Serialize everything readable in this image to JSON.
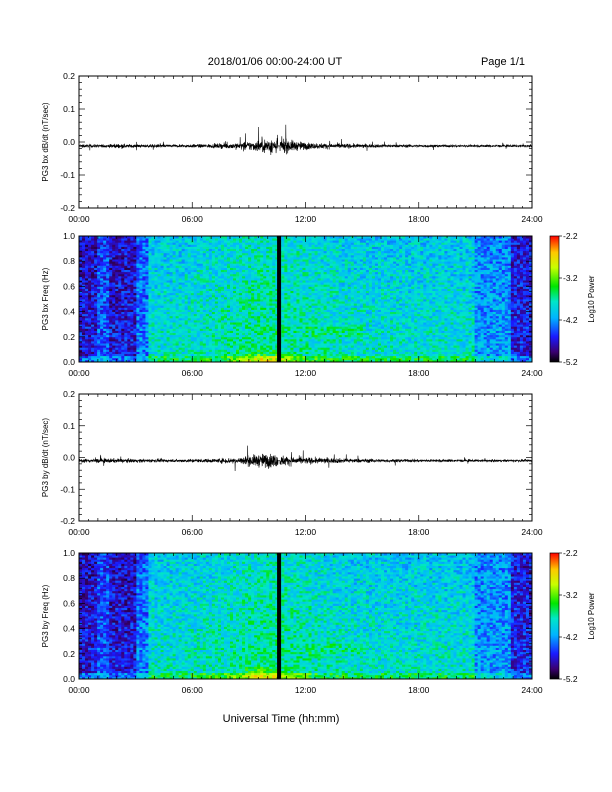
{
  "header": {
    "title": "2018/01/06  00:00-24:00 UT",
    "page": "Page 1/1"
  },
  "footer": {
    "xlabel": "Universal Time (hh:mm)"
  },
  "chart_data": [
    {
      "id": "bx-waveform",
      "type": "line",
      "ylabel": "PG3 bx dB/dt (nT/sec)",
      "ylim": [
        -0.2,
        0.2
      ],
      "yticks": [
        "0.2",
        "0.1",
        "0.0",
        "-0.1",
        "-0.2"
      ],
      "xticks": [
        "00:00",
        "06:00",
        "12:00",
        "18:00",
        "24:00"
      ],
      "xlim": [
        0,
        24
      ],
      "baseline": -0.012,
      "envelope": [
        [
          0,
          0.008
        ],
        [
          1.5,
          0.008
        ],
        [
          2,
          0.012
        ],
        [
          3,
          0.008
        ],
        [
          5,
          0.008
        ],
        [
          7,
          0.01
        ],
        [
          8.5,
          0.018
        ],
        [
          9.5,
          0.03
        ],
        [
          10,
          0.04
        ],
        [
          10.5,
          0.045
        ],
        [
          11,
          0.035
        ],
        [
          11.5,
          0.025
        ],
        [
          12.5,
          0.015
        ],
        [
          14,
          0.012
        ],
        [
          16,
          0.008
        ],
        [
          20,
          0.006
        ],
        [
          24,
          0.006
        ]
      ]
    },
    {
      "id": "bx-spectrogram",
      "type": "heatmap",
      "ylabel": "PG3 bx Freq (Hz)",
      "ylim": [
        0.0,
        1.0
      ],
      "yticks": [
        "1.0",
        "0.8",
        "0.6",
        "0.4",
        "0.2",
        "0.0"
      ],
      "xticks": [
        "00:00",
        "06:00",
        "12:00",
        "18:00",
        "24:00"
      ],
      "xlim": [
        0,
        24
      ],
      "colorbar": {
        "label": "Log10 Power",
        "range": [
          -5.2,
          -2.2
        ],
        "ticks": [
          "-2.2",
          "-3.2",
          "-4.2",
          "-5.2"
        ]
      },
      "gap_hour": 10.6
    },
    {
      "id": "by-waveform",
      "type": "line",
      "ylabel": "PG3 by dB/dt (nT/sec)",
      "ylim": [
        -0.2,
        0.2
      ],
      "yticks": [
        "0.2",
        "0.1",
        "0.0",
        "-0.1",
        "-0.2"
      ],
      "xticks": [
        "00:00",
        "06:00",
        "12:00",
        "18:00",
        "24:00"
      ],
      "xlim": [
        0,
        24
      ],
      "baseline": -0.01,
      "envelope": [
        [
          0,
          0.01
        ],
        [
          1.5,
          0.012
        ],
        [
          2.5,
          0.01
        ],
        [
          5,
          0.008
        ],
        [
          7,
          0.01
        ],
        [
          8.5,
          0.02
        ],
        [
          9.5,
          0.035
        ],
        [
          10,
          0.04
        ],
        [
          10.5,
          0.035
        ],
        [
          11,
          0.025
        ],
        [
          12,
          0.018
        ],
        [
          14,
          0.012
        ],
        [
          17,
          0.008
        ],
        [
          22,
          0.006
        ],
        [
          24,
          0.006
        ]
      ]
    },
    {
      "id": "by-spectrogram",
      "type": "heatmap",
      "ylabel": "PG3 by Freq (Hz)",
      "ylim": [
        0.0,
        1.0
      ],
      "yticks": [
        "1.0",
        "0.8",
        "0.6",
        "0.4",
        "0.2",
        "0.0"
      ],
      "xticks": [
        "00:00",
        "06:00",
        "12:00",
        "18:00",
        "24:00"
      ],
      "xlim": [
        0,
        24
      ],
      "colorbar": {
        "label": "Log10 Power",
        "range": [
          -5.2,
          -2.2
        ],
        "ticks": [
          "-2.2",
          "-3.2",
          "-4.2",
          "-5.2"
        ]
      },
      "gap_hour": 10.6
    }
  ]
}
